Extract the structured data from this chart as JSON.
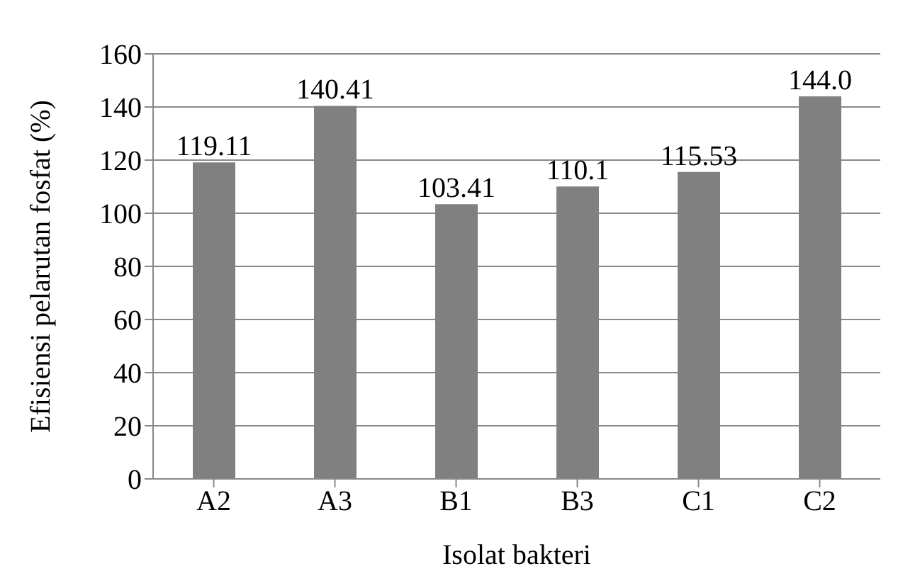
{
  "chart_data": {
    "type": "bar",
    "xlabel": "Isolat bakteri",
    "ylabel": "Efisiensi pelarutan fosfat (%)",
    "categories": [
      "A2",
      "A3",
      "B1",
      "B3",
      "C1",
      "C2"
    ],
    "values": [
      119.11,
      140.41,
      103.41,
      110.1,
      115.53,
      144.0
    ],
    "value_labels": [
      "119.11",
      "140.41",
      "103.41",
      "110.1",
      "115.53",
      "144.0"
    ],
    "color": "#808080",
    "ylim": [
      0,
      160
    ],
    "yticks": [
      0,
      20,
      40,
      60,
      80,
      100,
      120,
      140,
      160
    ],
    "grid": "y"
  }
}
